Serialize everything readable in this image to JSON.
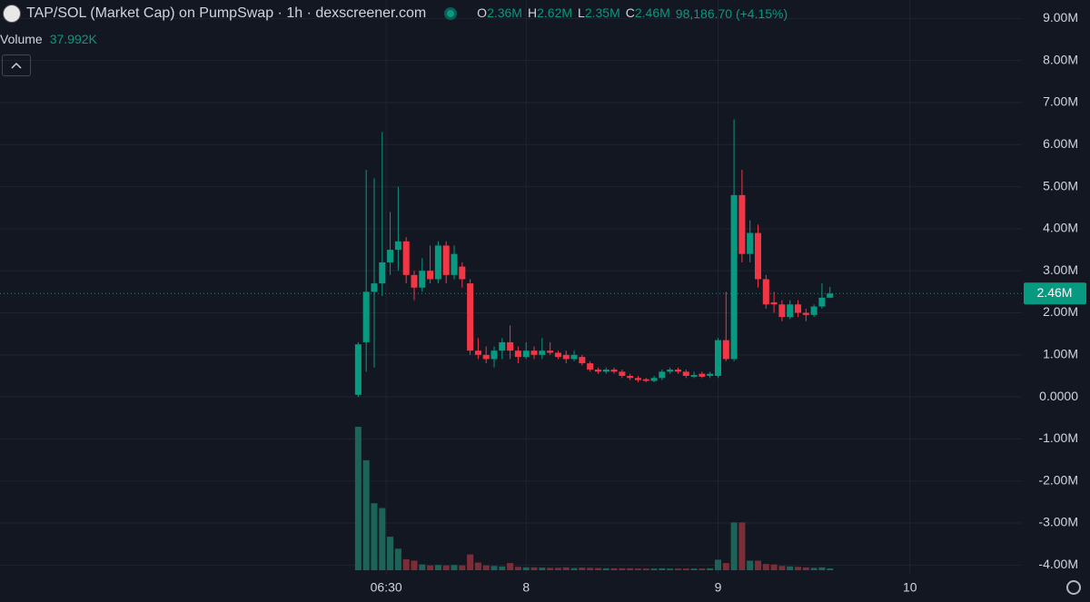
{
  "chart_data": {
    "type": "candlestick",
    "title": "TAP/SOL (Market Cap) on PumpSwap · 1h · dexscreener.com",
    "ohlc": [
      {
        "key": "O",
        "value": 2360000,
        "label": "2.36M"
      },
      {
        "key": "H",
        "value": 2620000,
        "label": "2.62M"
      },
      {
        "key": "L",
        "value": 2350000,
        "label": "2.35M"
      },
      {
        "key": "C",
        "value": 2460000,
        "label": "2.46M"
      }
    ],
    "change": "98,186.70 (+4.15%)",
    "volume_legend": {
      "label": "Volume",
      "value": 37992,
      "value_label": "37.992K"
    },
    "up_color": "#089981",
    "down_color": "#f23645",
    "up_volume_color": "#1b6457",
    "down_volume_color": "#7b2e37",
    "x": [
      0,
      1,
      2,
      3,
      4,
      5,
      6,
      7,
      8,
      9,
      10,
      11,
      12,
      13,
      14,
      15,
      16,
      17,
      18,
      19,
      20,
      21,
      22,
      23,
      24,
      25,
      26,
      27,
      28,
      29,
      30,
      31,
      32,
      33,
      34,
      35,
      36,
      37,
      38,
      39,
      40,
      41,
      42,
      43,
      44,
      45,
      46,
      47,
      48,
      49,
      50,
      51,
      52,
      53,
      54,
      55,
      56,
      57,
      58,
      59
    ],
    "open": [
      50000,
      1300000,
      2500000,
      2700000,
      3200000,
      3500000,
      3700000,
      2900000,
      2600000,
      3000000,
      2800000,
      3600000,
      2900000,
      3100000,
      2700000,
      1100000,
      1000000,
      900000,
      1100000,
      1300000,
      1100000,
      950000,
      1100000,
      1000000,
      1100000,
      1050000,
      1000000,
      900000,
      950000,
      800000,
      650000,
      600000,
      650000,
      600000,
      500000,
      450000,
      420000,
      380000,
      450000,
      600000,
      650000,
      600000,
      480000,
      550000,
      500000,
      500000,
      1350000,
      900000,
      4800000,
      3400000,
      3900000,
      2800000,
      2250000,
      2200000,
      1900000,
      2200000,
      2000000,
      1950000,
      2150000,
      2360000
    ],
    "high": [
      1300000,
      5400000,
      5200000,
      6300000,
      4400000,
      5000000,
      3800000,
      3000000,
      3300000,
      3600000,
      3700000,
      3700000,
      3600000,
      3200000,
      2800000,
      1400000,
      1200000,
      1200000,
      1400000,
      1700000,
      1200000,
      1300000,
      1200000,
      1400000,
      1300000,
      1100000,
      1100000,
      1100000,
      1000000,
      850000,
      700000,
      700000,
      700000,
      650000,
      550000,
      500000,
      450000,
      500000,
      650000,
      700000,
      700000,
      650000,
      600000,
      600000,
      600000,
      1400000,
      2500000,
      6600000,
      5400000,
      4200000,
      4100000,
      2900000,
      2500000,
      2300000,
      2300000,
      2300000,
      2100000,
      2200000,
      2700000,
      2620000
    ],
    "low": [
      0,
      600000,
      700000,
      2400000,
      2900000,
      3000000,
      2700000,
      2300000,
      2500000,
      2700000,
      2700000,
      2700000,
      2800000,
      2600000,
      1000000,
      900000,
      800000,
      700000,
      900000,
      900000,
      800000,
      900000,
      900000,
      900000,
      1000000,
      900000,
      800000,
      850000,
      750000,
      600000,
      550000,
      550000,
      550000,
      450000,
      400000,
      350000,
      350000,
      350000,
      400000,
      550000,
      550000,
      450000,
      450000,
      450000,
      450000,
      450000,
      850000,
      850000,
      3200000,
      3200000,
      2600000,
      2100000,
      2000000,
      1800000,
      1850000,
      1900000,
      1800000,
      1900000,
      2100000,
      2350000
    ],
    "close": [
      1250000,
      2500000,
      2700000,
      3200000,
      3500000,
      3700000,
      2900000,
      2600000,
      3000000,
      2800000,
      3600000,
      2900000,
      3400000,
      2800000,
      1100000,
      1000000,
      900000,
      1100000,
      1300000,
      1100000,
      950000,
      1100000,
      1000000,
      1100000,
      1050000,
      950000,
      900000,
      1000000,
      800000,
      650000,
      600000,
      650000,
      600000,
      500000,
      450000,
      400000,
      380000,
      450000,
      600000,
      650000,
      600000,
      500000,
      520000,
      480000,
      550000,
      1350000,
      900000,
      4800000,
      3400000,
      3900000,
      2800000,
      2200000,
      2200000,
      1900000,
      2200000,
      2000000,
      1950000,
      2150000,
      2360000,
      2460000
    ],
    "volume": [
      3000000,
      2300000,
      1400000,
      1300000,
      700000,
      450000,
      230000,
      200000,
      120000,
      100000,
      110000,
      100000,
      110000,
      100000,
      330000,
      160000,
      100000,
      90000,
      80000,
      150000,
      70000,
      60000,
      60000,
      55000,
      50000,
      50000,
      60000,
      45000,
      55000,
      50000,
      45000,
      40000,
      40000,
      40000,
      40000,
      35000,
      35000,
      35000,
      40000,
      35000,
      35000,
      35000,
      35000,
      35000,
      40000,
      220000,
      150000,
      1000000,
      1000000,
      200000,
      200000,
      130000,
      120000,
      90000,
      80000,
      70000,
      60000,
      50000,
      60000,
      37992
    ],
    "xlim": [
      -44.8,
      83
    ],
    "xticks": [
      {
        "value": 3.5,
        "label": "06:30"
      },
      {
        "value": 21,
        "label": "8"
      },
      {
        "value": 45,
        "label": "9"
      },
      {
        "value": 69,
        "label": "10"
      }
    ],
    "ylim": [
      -4230000,
      9440000
    ],
    "yticks": [
      {
        "value": -4000000,
        "label": "-4.00M"
      },
      {
        "value": -3000000,
        "label": "-3.00M"
      },
      {
        "value": -2000000,
        "label": "-2.00M"
      },
      {
        "value": -1000000,
        "label": "-1.00M"
      },
      {
        "value": 0,
        "label": "0.0000"
      },
      {
        "value": 1000000,
        "label": "1.00M"
      },
      {
        "value": 2000000,
        "label": "2.00M"
      },
      {
        "value": 3000000,
        "label": "3.00M"
      },
      {
        "value": 4000000,
        "label": "4.00M"
      },
      {
        "value": 5000000,
        "label": "5.00M"
      },
      {
        "value": 6000000,
        "label": "6.00M"
      },
      {
        "value": 7000000,
        "label": "7.00M"
      },
      {
        "value": 8000000,
        "label": "8.00M"
      },
      {
        "value": 9000000,
        "label": "9.00M"
      }
    ],
    "price_line": {
      "value": 2460000,
      "label": "2.46M"
    },
    "grid": true
  }
}
